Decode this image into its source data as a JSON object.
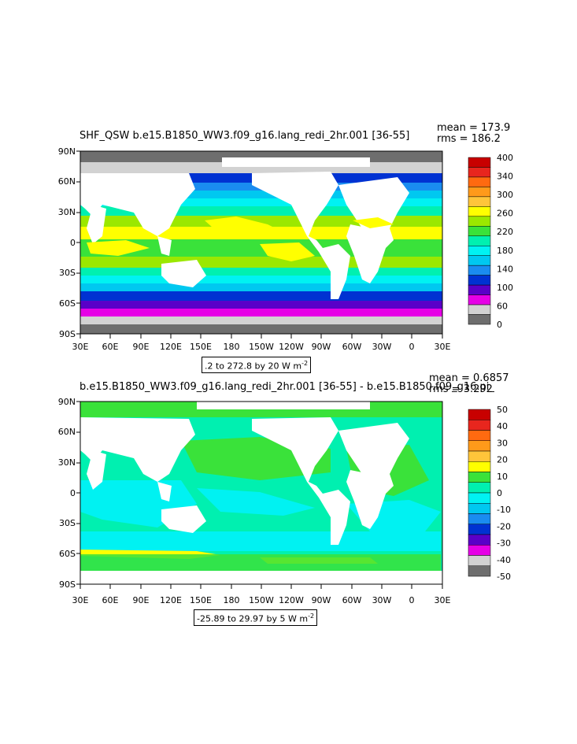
{
  "panels": [
    {
      "title": "SHF_QSW b.e15.B1850_WW3.f09_g16.lang_redi_2hr.001 [36-55]",
      "mean_label": "mean = 173.9",
      "rms_label": "rms = 186.2",
      "range_label": ".2 to 272.8 by 20  W m",
      "range_sup": "-2",
      "colorbar_labels": [
        "400",
        "340",
        "300",
        "260",
        "220",
        "180",
        "140",
        "100",
        "60",
        "0"
      ],
      "colorbar_colors": [
        "#c80000",
        "#e8261e",
        "#ff6a10",
        "#ff9a1a",
        "#ffc53a",
        "#ffff00",
        "#9be800",
        "#3ae23a",
        "#00f0b0",
        "#00f2f2",
        "#00c8f0",
        "#1a8cf0",
        "#0032d2",
        "#5a00c8",
        "#e600e6",
        "#d2d2d2",
        "#6e6e6e"
      ]
    },
    {
      "title": "b.e15.B1850_WW3.f09_g16.lang_redi_2hr.001 [36-55] - b.e15.B1850.f09_g16.pi_",
      "mean_label": "mean = 0.6857",
      "rms_label": "rms = 3.292",
      "range_label": "-25.89 to 29.97 by 5  W m",
      "range_sup": "-2",
      "colorbar_labels": [
        "50",
        "40",
        "30",
        "20",
        "10",
        "0",
        "-10",
        "-20",
        "-30",
        "-40",
        "-50"
      ],
      "colorbar_colors": [
        "#c80000",
        "#e8261e",
        "#ff6a10",
        "#ff9a1a",
        "#ffc53a",
        "#ffff00",
        "#3ae23a",
        "#00f0b0",
        "#00f2f2",
        "#00c8f0",
        "#1a8cf0",
        "#0032d2",
        "#5a00c8",
        "#e600e6",
        "#d2d2d2",
        "#6e6e6e"
      ]
    }
  ],
  "axes": {
    "y_ticks": [
      "90N",
      "60N",
      "30N",
      "0",
      "30S",
      "60S",
      "90S"
    ],
    "x_ticks": [
      "30E",
      "60E",
      "90E",
      "120E",
      "150E",
      "180",
      "150W",
      "120W",
      "90W",
      "60W",
      "30W",
      "0",
      "30E"
    ]
  },
  "colors": {
    "land": "#ffffff",
    "ice": "#6e6e6e"
  }
}
